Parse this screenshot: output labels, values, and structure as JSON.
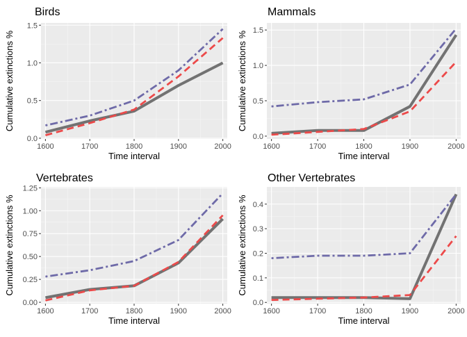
{
  "chart_data": [
    {
      "type": "line",
      "title": "Birds",
      "xlabel": "Time interval",
      "ylabel": "Cumulative extinctions %",
      "xlim": [
        1590,
        2010
      ],
      "ylim": [
        -0.01,
        1.53
      ],
      "x_ticks": [
        1600,
        1700,
        1800,
        1900,
        2000
      ],
      "y_ticks": [
        0.0,
        0.5,
        1.0,
        1.5
      ],
      "y_tick_labels": [
        "0.0",
        "0.5",
        "1.0",
        "1.5"
      ],
      "grid": true,
      "series": [
        {
          "style": "solid",
          "color": "#6b6b6b",
          "x": [
            1600,
            1700,
            1800,
            1900,
            2000
          ],
          "values": [
            0.08,
            0.23,
            0.36,
            0.7,
            1.0
          ]
        },
        {
          "style": "dashed",
          "color": "#ec4a4a",
          "x": [
            1600,
            1700,
            1800,
            1900,
            2000
          ],
          "values": [
            0.04,
            0.2,
            0.38,
            0.82,
            1.33
          ]
        },
        {
          "style": "dotdash",
          "color": "#6e6aa8",
          "x": [
            1600,
            1700,
            1800,
            1900,
            2000
          ],
          "values": [
            0.17,
            0.3,
            0.5,
            0.9,
            1.45
          ]
        }
      ]
    },
    {
      "type": "line",
      "title": "Mammals",
      "xlabel": "Time interval",
      "ylabel": "Cumulative extinctions %",
      "xlim": [
        1590,
        2010
      ],
      "ylim": [
        -0.04,
        1.6
      ],
      "x_ticks": [
        1600,
        1700,
        1800,
        1900,
        2000
      ],
      "y_ticks": [
        0.0,
        0.5,
        1.0,
        1.5
      ],
      "y_tick_labels": [
        "0.0",
        "0.5",
        "1.0",
        "1.5"
      ],
      "grid": true,
      "series": [
        {
          "style": "solid",
          "color": "#6b6b6b",
          "x": [
            1600,
            1700,
            1800,
            1900,
            2000
          ],
          "values": [
            0.04,
            0.08,
            0.08,
            0.42,
            1.43
          ]
        },
        {
          "style": "dashed",
          "color": "#ec4a4a",
          "x": [
            1600,
            1700,
            1800,
            1900,
            2000
          ],
          "values": [
            0.02,
            0.06,
            0.1,
            0.35,
            1.05
          ]
        },
        {
          "style": "dotdash",
          "color": "#6e6aa8",
          "x": [
            1600,
            1700,
            1800,
            1900,
            2000
          ],
          "values": [
            0.42,
            0.48,
            0.52,
            0.73,
            1.52
          ]
        }
      ]
    },
    {
      "type": "line",
      "title": "Vertebrates",
      "xlabel": "Time interval",
      "ylabel": "Cumulative extinctions %",
      "xlim": [
        1590,
        2010
      ],
      "ylim": [
        -0.015,
        1.26
      ],
      "x_ticks": [
        1600,
        1700,
        1800,
        1900,
        2000
      ],
      "y_ticks": [
        0.0,
        0.25,
        0.5,
        0.75,
        1.0,
        1.25
      ],
      "y_tick_labels": [
        "0.00",
        "0.25",
        "0.50",
        "0.75",
        "1.00",
        "1.25"
      ],
      "grid": true,
      "series": [
        {
          "style": "solid",
          "color": "#6b6b6b",
          "x": [
            1600,
            1700,
            1800,
            1900,
            2000
          ],
          "values": [
            0.05,
            0.14,
            0.18,
            0.43,
            0.91
          ]
        },
        {
          "style": "dashed",
          "color": "#ec4a4a",
          "x": [
            1600,
            1700,
            1800,
            1900,
            2000
          ],
          "values": [
            0.02,
            0.13,
            0.18,
            0.44,
            0.95
          ]
        },
        {
          "style": "dotdash",
          "color": "#6e6aa8",
          "x": [
            1600,
            1700,
            1800,
            1900,
            2000
          ],
          "values": [
            0.28,
            0.35,
            0.45,
            0.68,
            1.19
          ]
        }
      ]
    },
    {
      "type": "line",
      "title": "Other Vertebrates",
      "xlabel": "Time interval",
      "ylabel": "Cumulative extinctions %",
      "xlim": [
        1590,
        2010
      ],
      "ylim": [
        -0.005,
        0.47
      ],
      "x_ticks": [
        1600,
        1700,
        1800,
        1900,
        2000
      ],
      "y_ticks": [
        0.0,
        0.1,
        0.2,
        0.3,
        0.4
      ],
      "y_tick_labels": [
        "0.0",
        "0.1",
        "0.2",
        "0.3",
        "0.4"
      ],
      "grid": true,
      "series": [
        {
          "style": "solid",
          "color": "#6b6b6b",
          "x": [
            1600,
            1700,
            1800,
            1900,
            2000
          ],
          "values": [
            0.02,
            0.02,
            0.02,
            0.015,
            0.44
          ]
        },
        {
          "style": "dashed",
          "color": "#ec4a4a",
          "x": [
            1600,
            1700,
            1800,
            1900,
            2000
          ],
          "values": [
            0.01,
            0.015,
            0.02,
            0.03,
            0.27
          ]
        },
        {
          "style": "dotdash",
          "color": "#6e6aa8",
          "x": [
            1600,
            1700,
            1800,
            1900,
            2000
          ],
          "values": [
            0.18,
            0.19,
            0.19,
            0.2,
            0.44
          ]
        }
      ]
    }
  ]
}
